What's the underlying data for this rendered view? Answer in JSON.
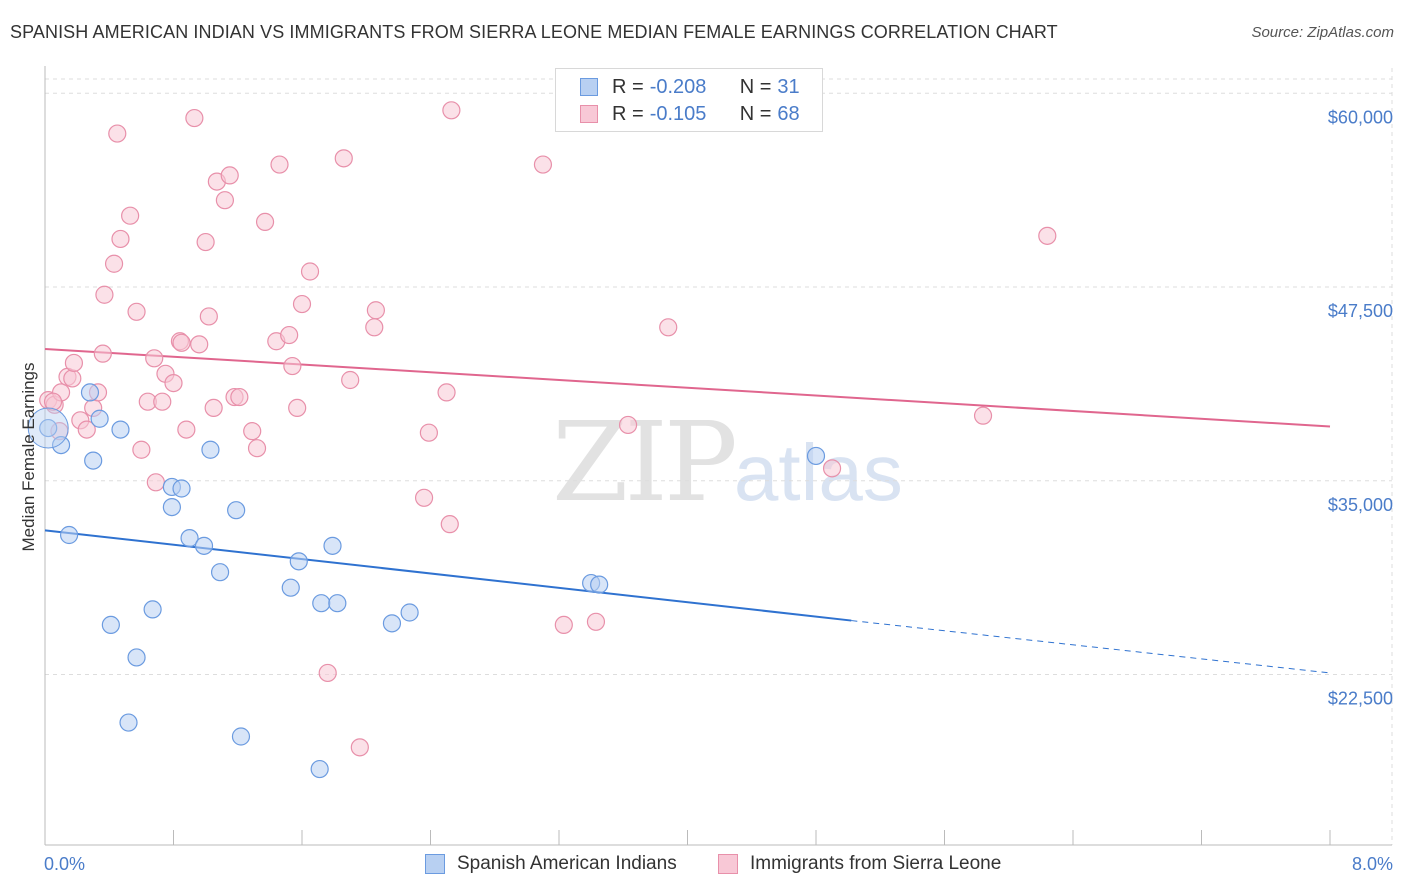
{
  "title": "SPANISH AMERICAN INDIAN VS IMMIGRANTS FROM SIERRA LEONE MEDIAN FEMALE EARNINGS CORRELATION CHART",
  "source": "Source: ZipAtlas.com",
  "watermark": {
    "zip": "ZIP",
    "atlas": "atlas"
  },
  "legend": {
    "r_label": "R =",
    "n_label": "N =",
    "series1": {
      "r": "-0.208",
      "n": "31"
    },
    "series2": {
      "r": "-0.105",
      "n": "68"
    }
  },
  "bottom_legend": {
    "series1": "Spanish American Indians",
    "series2": "Immigrants from Sierra Leone"
  },
  "colors": {
    "blue_fill": "#b8d0f2",
    "blue_stroke": "#6b9be0",
    "blue_line": "#2f72d0",
    "pink_fill": "#f8c8d6",
    "pink_stroke": "#e890aa",
    "pink_line": "#e0668e",
    "grid": "#dddddd",
    "tick_text": "#4a7cc9"
  },
  "chart_data": {
    "type": "scatter",
    "title": "SPANISH AMERICAN INDIAN VS IMMIGRANTS FROM SIERRA LEONE MEDIAN FEMALE EARNINGS CORRELATION CHART",
    "xlabel": "",
    "ylabel": "Median Female Earnings",
    "xlim": [
      0,
      8
    ],
    "ylim": [
      11500,
      61500
    ],
    "x_tick_labels": [
      "0.0%",
      "8.0%"
    ],
    "y_ticks": [
      22500,
      35000,
      47500,
      60000
    ],
    "y_tick_labels": [
      "$22,500",
      "$35,000",
      "$47,500",
      "$60,000"
    ],
    "series": [
      {
        "name": "Spanish American Indians",
        "color": "blue",
        "points": [
          [
            0.02,
            38400
          ],
          [
            0.1,
            37300
          ],
          [
            0.3,
            36300
          ],
          [
            0.15,
            31500
          ],
          [
            0.28,
            40700
          ],
          [
            0.34,
            39000
          ],
          [
            0.47,
            38300
          ],
          [
            0.41,
            25700
          ],
          [
            0.57,
            23600
          ],
          [
            0.67,
            26700
          ],
          [
            0.52,
            19400
          ],
          [
            0.79,
            33300
          ],
          [
            0.79,
            34600
          ],
          [
            0.85,
            34500
          ],
          [
            0.9,
            31300
          ],
          [
            0.99,
            30800
          ],
          [
            1.03,
            37000
          ],
          [
            1.09,
            29100
          ],
          [
            1.19,
            33100
          ],
          [
            1.22,
            18500
          ],
          [
            1.53,
            28100
          ],
          [
            1.58,
            29800
          ],
          [
            1.72,
            27100
          ],
          [
            1.82,
            27100
          ],
          [
            1.79,
            30800
          ],
          [
            1.71,
            16400
          ],
          [
            2.16,
            25800
          ],
          [
            2.27,
            26500
          ],
          [
            3.4,
            28400
          ],
          [
            3.45,
            28300
          ],
          [
            4.8,
            36600
          ]
        ],
        "trend": {
          "x": [
            0,
            5.02
          ],
          "y": [
            31800,
            25980
          ],
          "dashed_to": [
            8.0,
            22600
          ]
        }
      },
      {
        "name": "Immigrants from Sierra Leone",
        "color": "pink",
        "points": [
          [
            0.02,
            40200
          ],
          [
            0.06,
            39900
          ],
          [
            0.1,
            40700
          ],
          [
            0.14,
            41700
          ],
          [
            0.17,
            41600
          ],
          [
            0.18,
            42600
          ],
          [
            0.22,
            38900
          ],
          [
            0.26,
            38300
          ],
          [
            0.3,
            39700
          ],
          [
            0.33,
            40700
          ],
          [
            0.36,
            43200
          ],
          [
            0.37,
            47000
          ],
          [
            0.43,
            49000
          ],
          [
            0.45,
            57400
          ],
          [
            0.47,
            50600
          ],
          [
            0.53,
            52100
          ],
          [
            0.57,
            45900
          ],
          [
            0.6,
            37000
          ],
          [
            0.64,
            40100
          ],
          [
            0.68,
            42900
          ],
          [
            0.69,
            34900
          ],
          [
            0.73,
            40100
          ],
          [
            0.75,
            41900
          ],
          [
            0.8,
            41300
          ],
          [
            0.84,
            44000
          ],
          [
            0.85,
            43900
          ],
          [
            0.88,
            38300
          ],
          [
            0.93,
            58400
          ],
          [
            0.96,
            43800
          ],
          [
            1.0,
            50400
          ],
          [
            1.02,
            45600
          ],
          [
            1.05,
            39700
          ],
          [
            1.07,
            54300
          ],
          [
            1.12,
            53100
          ],
          [
            1.15,
            54700
          ],
          [
            1.18,
            40400
          ],
          [
            1.21,
            40400
          ],
          [
            1.29,
            38200
          ],
          [
            1.32,
            37100
          ],
          [
            1.37,
            51700
          ],
          [
            1.44,
            44000
          ],
          [
            1.46,
            55400
          ],
          [
            1.52,
            44400
          ],
          [
            1.54,
            42400
          ],
          [
            1.57,
            39700
          ],
          [
            1.6,
            46400
          ],
          [
            1.65,
            48500
          ],
          [
            1.76,
            22600
          ],
          [
            1.86,
            55800
          ],
          [
            1.9,
            41500
          ],
          [
            1.96,
            17800
          ],
          [
            2.06,
            46000
          ],
          [
            2.05,
            44900
          ],
          [
            2.36,
            33900
          ],
          [
            2.39,
            38100
          ],
          [
            2.5,
            40700
          ],
          [
            2.52,
            32200
          ],
          [
            2.53,
            58900
          ],
          [
            3.1,
            55400
          ],
          [
            3.23,
            25700
          ],
          [
            3.43,
            25900
          ],
          [
            3.63,
            38600
          ],
          [
            3.88,
            44900
          ],
          [
            4.9,
            35800
          ],
          [
            5.84,
            39200
          ],
          [
            6.24,
            50800
          ],
          [
            0.05,
            40100
          ],
          [
            0.09,
            38200
          ]
        ],
        "trend": {
          "x": [
            0,
            8.0
          ],
          "y": [
            43500,
            38500
          ]
        }
      }
    ]
  }
}
